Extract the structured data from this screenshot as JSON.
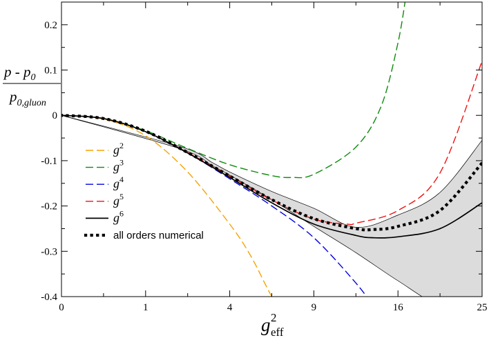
{
  "chart_data": {
    "type": "line",
    "title": "",
    "xlabel": {
      "base": "g",
      "sup": "2",
      "sub": "eff"
    },
    "ylabel": {
      "numerator": "p - p",
      "numerator_sub": "0",
      "denominator": "p",
      "denominator_sub": "0,gluon"
    },
    "x_scale": "sqrt",
    "xlim": [
      0,
      25
    ],
    "ylim": [
      -0.4,
      0.25
    ],
    "x_ticks": [
      0,
      1,
      4,
      9,
      16,
      25
    ],
    "x_tick_labels": [
      "0",
      "1",
      "4",
      "9",
      "16",
      "25"
    ],
    "y_ticks": [
      -0.4,
      -0.3,
      -0.2,
      -0.1,
      0,
      0.1,
      0.2
    ],
    "y_tick_labels": [
      "-0.4",
      "-0.3",
      "-0.2",
      "-0.1",
      "0",
      "0.1",
      "0.2"
    ],
    "legend_position": "lower-left",
    "grid": false,
    "band": {
      "fill": "#dcdcdc",
      "x": [
        0.0,
        2.0,
        3.24,
        4.0,
        6.25,
        9.0,
        12.25,
        16.0,
        20.25,
        25.0
      ],
      "upper": [
        0.0,
        -0.069,
        -0.105,
        -0.125,
        -0.168,
        -0.205,
        -0.247,
        -0.22,
        -0.17,
        -0.055
      ],
      "lower": [
        0.0,
        -0.074,
        -0.112,
        -0.132,
        -0.186,
        -0.245,
        -0.303,
        -0.365,
        -0.42,
        -0.43
      ]
    },
    "series": [
      {
        "name": "g",
        "name_sup": "2",
        "color": "#f5a300",
        "style": "dashed",
        "x": [
          0.0,
          0.25,
          1.0,
          2.25,
          4.0,
          5.06,
          6.25,
          7.5
        ],
        "y": [
          0.0,
          -0.008,
          -0.045,
          -0.125,
          -0.24,
          -0.31,
          -0.4,
          -0.47
        ]
      },
      {
        "name": "g",
        "name_sup": "3",
        "color": "#0e8a0e",
        "style": "dashed",
        "x": [
          0.0,
          0.25,
          1.0,
          2.25,
          4.0,
          6.25,
          7.5,
          9.0,
          12.25,
          14.44,
          16.0,
          16.81
        ],
        "y": [
          0.0,
          -0.007,
          -0.034,
          -0.073,
          -0.109,
          -0.133,
          -0.137,
          -0.13,
          -0.07,
          0.02,
          0.16,
          0.27
        ]
      },
      {
        "name": "g",
        "name_sup": "4",
        "color": "#0000e0",
        "style": "dashed",
        "x": [
          0.0,
          0.25,
          1.0,
          2.25,
          4.0,
          6.25,
          9.0,
          12.25,
          13.69
        ],
        "y": [
          0.0,
          -0.007,
          -0.036,
          -0.083,
          -0.14,
          -0.2,
          -0.27,
          -0.37,
          -0.42
        ]
      },
      {
        "name": "g",
        "name_sup": "5",
        "color": "#ee1010",
        "style": "dashed",
        "x": [
          0.0,
          0.25,
          1.0,
          2.25,
          4.0,
          6.25,
          9.0,
          11.56,
          12.25,
          16.0,
          20.25,
          25.0
        ],
        "y": [
          0.0,
          -0.007,
          -0.036,
          -0.082,
          -0.134,
          -0.187,
          -0.229,
          -0.24,
          -0.238,
          -0.21,
          -0.127,
          0.12
        ]
      },
      {
        "name": "g",
        "name_sup": "6",
        "color": "#000000",
        "style": "solid",
        "x": [
          0.0,
          0.25,
          1.0,
          2.25,
          4.0,
          6.25,
          9.0,
          12.25,
          13.69,
          16.0,
          20.25,
          25.0
        ],
        "y": [
          0.0,
          -0.007,
          -0.036,
          -0.083,
          -0.137,
          -0.193,
          -0.24,
          -0.265,
          -0.27,
          -0.268,
          -0.25,
          -0.193
        ]
      },
      {
        "name": "all orders numerical",
        "name_sup": "",
        "color": "#000000",
        "style": "dotted",
        "x": [
          0.0,
          0.25,
          1.0,
          2.25,
          4.0,
          6.25,
          9.0,
          12.25,
          13.69,
          16.0,
          20.25,
          25.0
        ],
        "y": [
          0.0,
          -0.007,
          -0.035,
          -0.082,
          -0.134,
          -0.186,
          -0.228,
          -0.25,
          -0.252,
          -0.245,
          -0.21,
          -0.105
        ]
      }
    ]
  }
}
